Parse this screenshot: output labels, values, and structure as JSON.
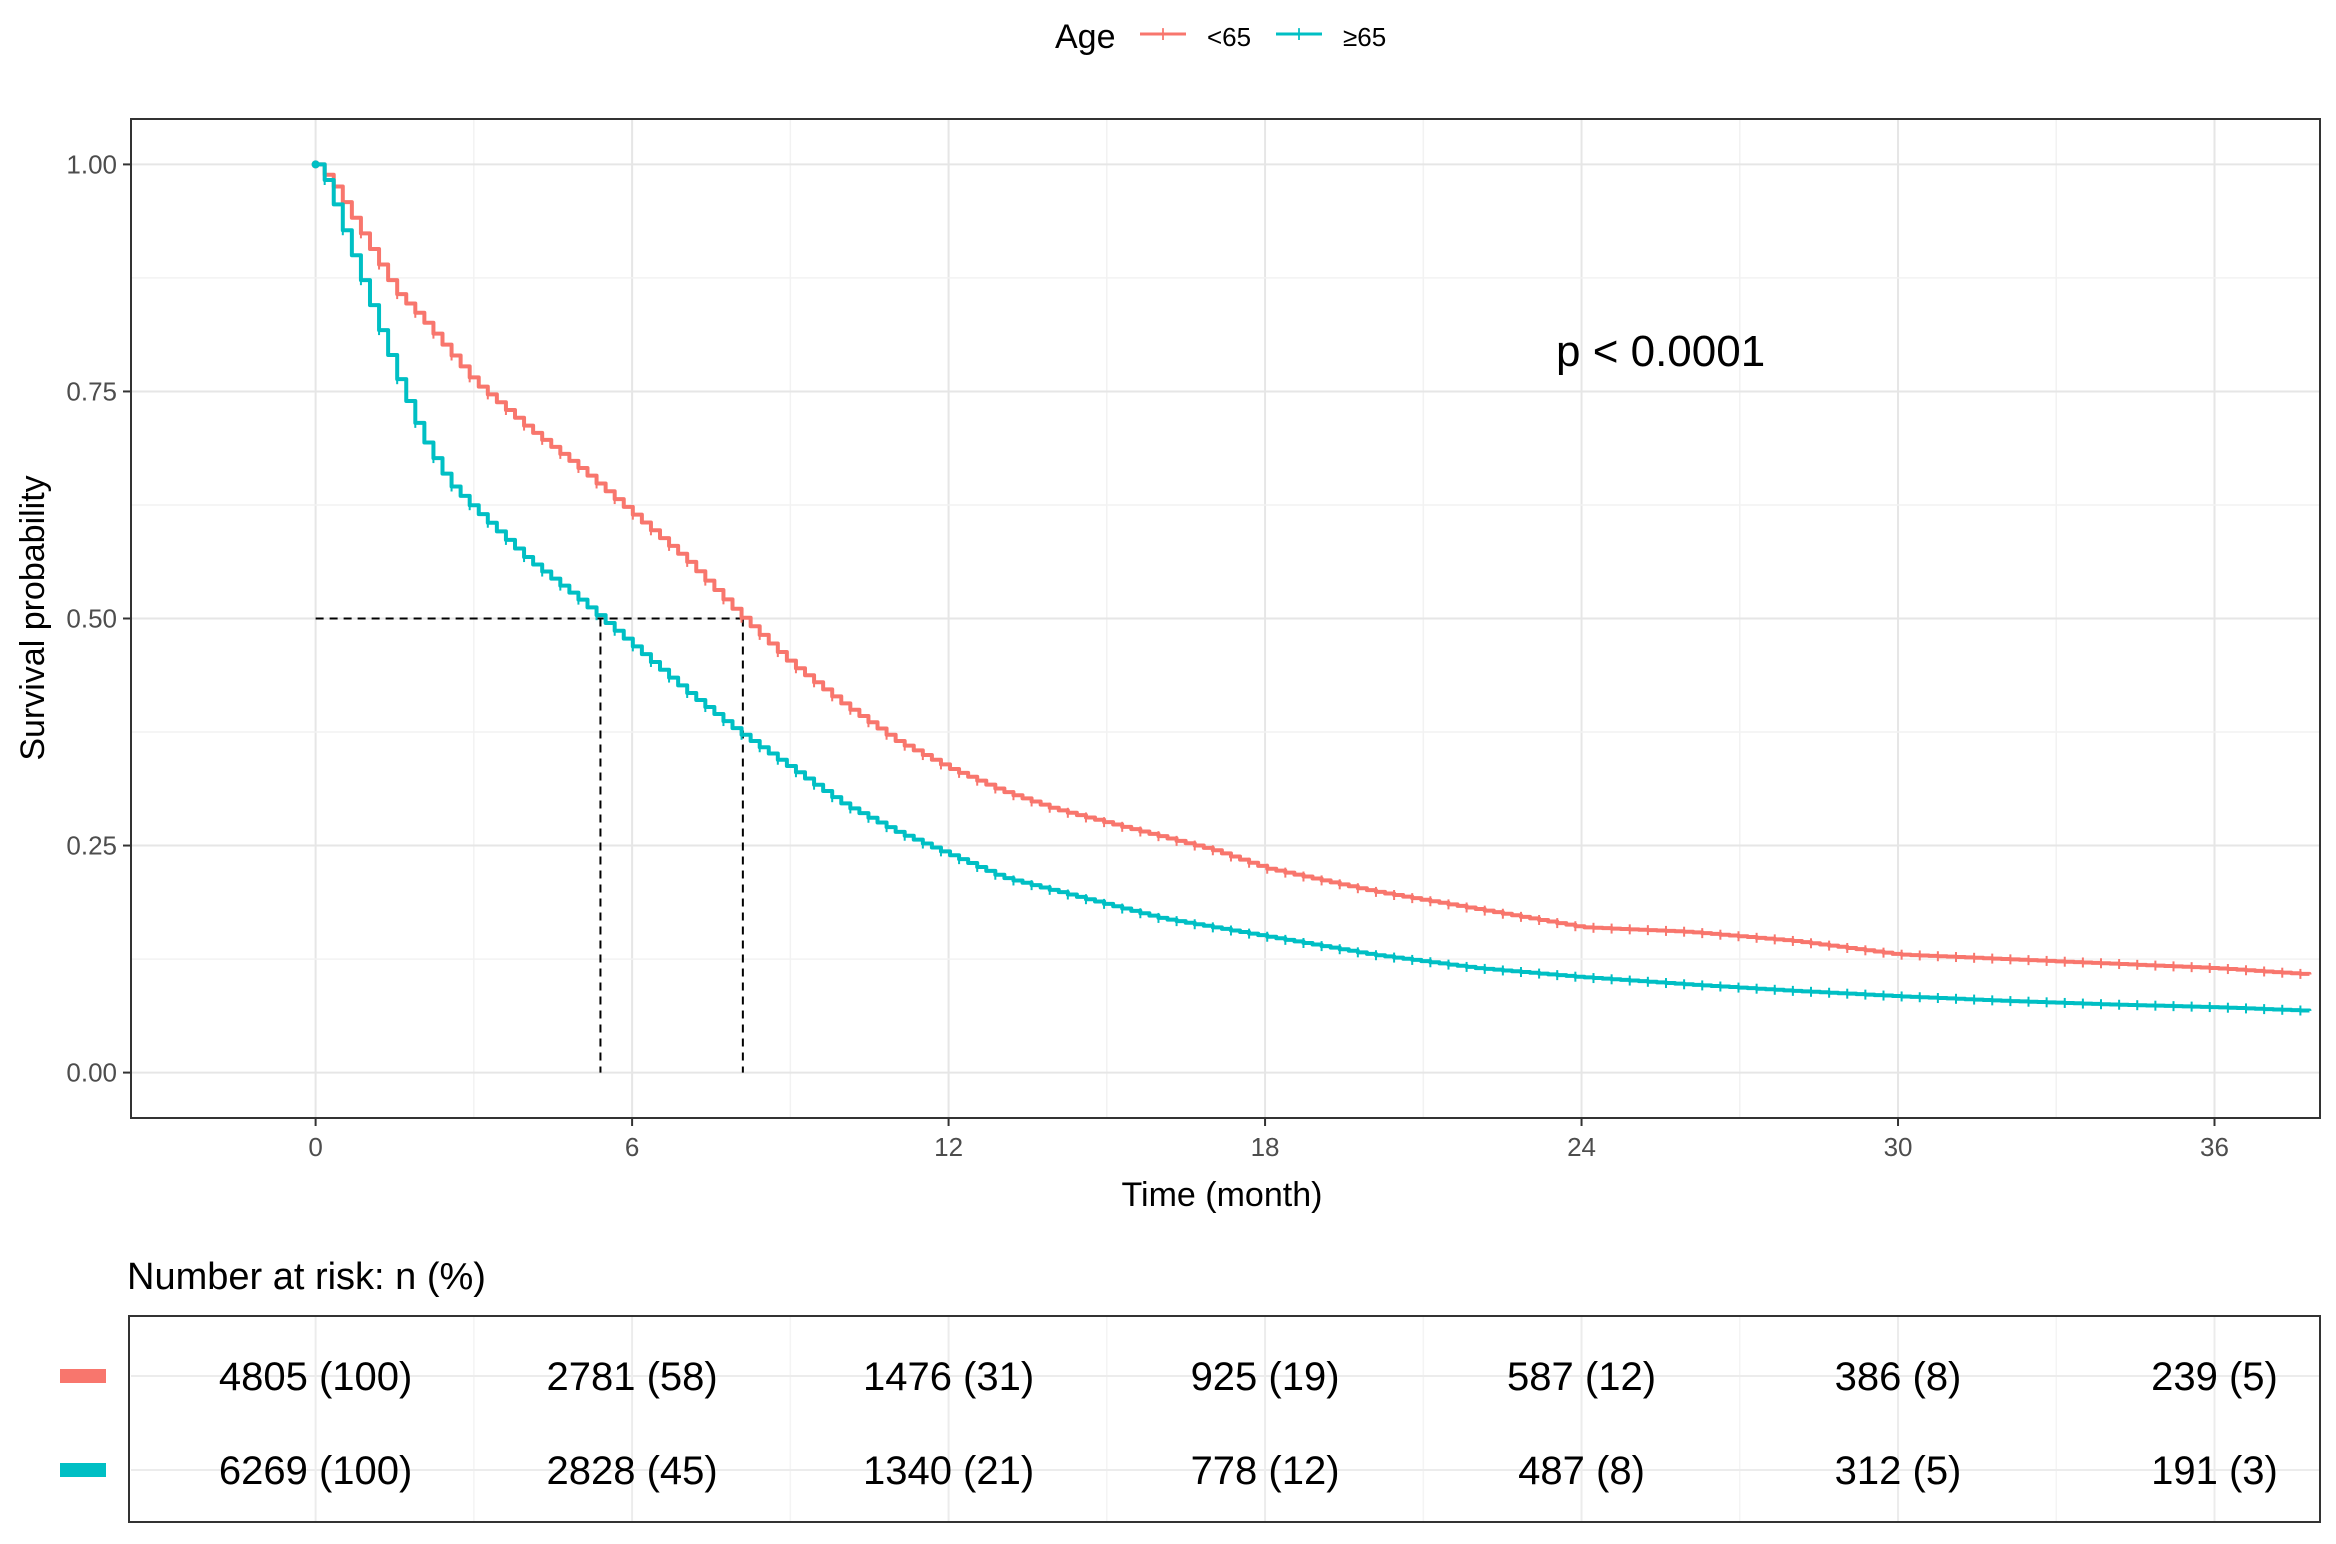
{
  "chart_data": {
    "type": "line",
    "subtype": "kaplan-meier",
    "title": "",
    "xlabel": "Time (month)",
    "ylabel": "Survival probability",
    "xlim": [
      -3.5,
      38
    ],
    "ylim": [
      -0.05,
      1.05
    ],
    "x_ticks": [
      0,
      6,
      12,
      18,
      24,
      30,
      36
    ],
    "y_ticks": [
      0.0,
      0.25,
      0.5,
      0.75,
      1.0
    ],
    "y_tick_labels": [
      "0.00",
      "0.25",
      "0.50",
      "0.75",
      "1.00"
    ],
    "grid": true,
    "legend": {
      "position": "top-center",
      "title": "Age",
      "entries": [
        "<65",
        "≥65"
      ]
    },
    "annotation": "p < 0.0001",
    "median_lines": [
      {
        "series": "<65",
        "x": 8.1,
        "y": 0.5
      },
      {
        "series": "≥65",
        "x": 5.4,
        "y": 0.5
      }
    ],
    "series": [
      {
        "name": "<65",
        "color": "#F8766D",
        "x": [
          0,
          0.3,
          0.6,
          1,
          1.5,
          2,
          3,
          4,
          5,
          5.5,
          6,
          7,
          8,
          9,
          10,
          11,
          12,
          13,
          14,
          15,
          16,
          17,
          18,
          20,
          22,
          24,
          26,
          28,
          30,
          32,
          34,
          36,
          37.8
        ],
        "y": [
          1.0,
          0.98,
          0.95,
          0.91,
          0.86,
          0.83,
          0.76,
          0.71,
          0.665,
          0.64,
          0.615,
          0.565,
          0.505,
          0.45,
          0.405,
          0.365,
          0.335,
          0.31,
          0.29,
          0.275,
          0.26,
          0.245,
          0.225,
          0.2,
          0.18,
          0.16,
          0.155,
          0.145,
          0.13,
          0.125,
          0.12,
          0.115,
          0.108
        ]
      },
      {
        "name": "≥65",
        "color": "#00BFC4",
        "x": [
          0,
          0.2,
          0.5,
          1,
          1.5,
          2,
          2.5,
          3,
          4,
          5,
          5.4,
          6,
          7,
          8,
          9,
          10,
          11,
          12,
          13,
          14,
          15,
          16,
          17,
          18,
          20,
          22,
          24,
          26,
          28,
          30,
          32,
          34,
          36,
          37.8
        ],
        "y": [
          1.0,
          0.98,
          0.93,
          0.85,
          0.77,
          0.7,
          0.65,
          0.62,
          0.565,
          0.52,
          0.5,
          0.47,
          0.42,
          0.375,
          0.335,
          0.295,
          0.265,
          0.24,
          0.215,
          0.2,
          0.185,
          0.17,
          0.16,
          0.15,
          0.13,
          0.115,
          0.105,
          0.097,
          0.09,
          0.084,
          0.079,
          0.075,
          0.072,
          0.068
        ]
      }
    ],
    "risk_table": {
      "title": "Number at risk: n (%)",
      "times": [
        0,
        6,
        12,
        18,
        24,
        30,
        36
      ],
      "rows": [
        {
          "name": "<65",
          "color": "#F8766D",
          "values": [
            "4805 (100)",
            "2781 (58)",
            "1476 (31)",
            "925 (19)",
            "587 (12)",
            "386 (8)",
            "239 (5)"
          ]
        },
        {
          "name": "≥65",
          "color": "#00BFC4",
          "values": [
            "6269 (100)",
            "2828 (45)",
            "1340 (21)",
            "778 (12)",
            "487 (8)",
            "312 (5)",
            "191 (3)"
          ]
        }
      ]
    }
  }
}
